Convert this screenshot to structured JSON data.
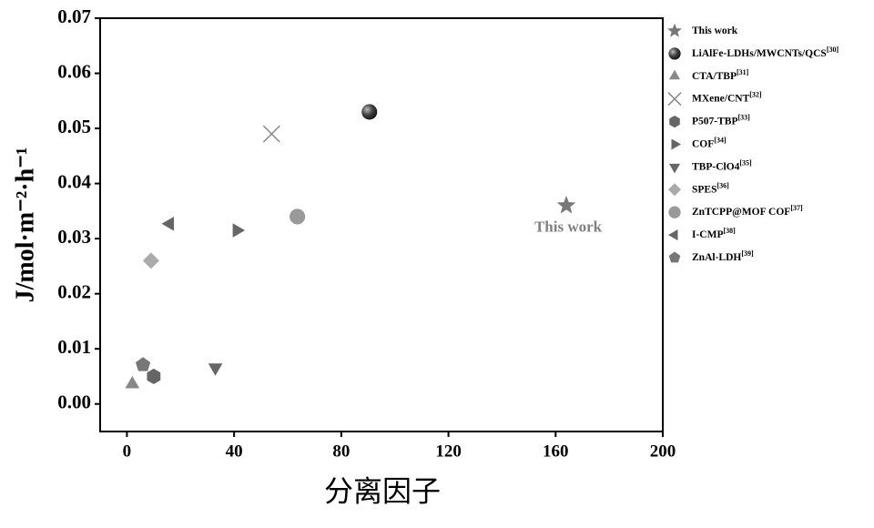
{
  "chart_data": {
    "type": "scatter",
    "x_label": "分离因子",
    "y_label": "J/mol·m⁻²·h⁻¹",
    "annotation": "This work",
    "xlim": [
      -10,
      200
    ],
    "xticks": [
      0,
      40,
      80,
      120,
      160,
      200
    ],
    "ylim": [
      -0.005,
      0.07
    ],
    "yticks": [
      {
        "value": 0,
        "label": "0.00"
      },
      0.01,
      0.02,
      0.03,
      0.04,
      0.05,
      0.06,
      0.07
    ],
    "series": [
      {
        "name": "This work",
        "marker": "star",
        "color": "#777777",
        "x": [
          164
        ],
        "values": [
          0.036
        ]
      },
      {
        "name": "LiAlFe-LDHs/MWCNTs/QCS",
        "ref": "[30]",
        "marker": "sphere",
        "color": "#333333",
        "x": [
          90.5
        ],
        "values": [
          0.053
        ]
      },
      {
        "name": "CTA/TBP",
        "ref": "[31]",
        "marker": "triangle-up",
        "color": "#888888",
        "x": [
          2
        ],
        "values": [
          0.0036
        ]
      },
      {
        "name": "MXene/CNT",
        "ref": "[32]",
        "marker": "cross",
        "color": "#888888",
        "x": [
          54
        ],
        "values": [
          0.049
        ]
      },
      {
        "name": "P507-TBP",
        "ref": "[33]",
        "marker": "hexagon",
        "color": "#666666",
        "x": [
          10
        ],
        "values": [
          0.005
        ]
      },
      {
        "name": "COF",
        "ref": "[34]",
        "marker": "triangle-right",
        "color": "#666666",
        "x": [
          41
        ],
        "values": [
          0.0315
        ]
      },
      {
        "name": "TBP-ClO4",
        "ref": "[35]",
        "marker": "triangle-down",
        "color": "#666666",
        "x": [
          33
        ],
        "values": [
          0.0066
        ]
      },
      {
        "name": "SPES",
        "ref": "[36]",
        "marker": "diamond",
        "color": "#aaaaaa",
        "x": [
          9
        ],
        "values": [
          0.026
        ]
      },
      {
        "name": "ZnTCPP@MOF COF",
        "ref": "[37]",
        "marker": "circle",
        "color": "#999999",
        "x": [
          63.6
        ],
        "values": [
          0.034
        ]
      },
      {
        "name": "I-CMP",
        "ref": "[38]",
        "marker": "triangle-left",
        "color": "#666666",
        "x": [
          16
        ],
        "values": [
          0.0327
        ]
      },
      {
        "name": "ZnAl-LDH",
        "ref": "[39]",
        "marker": "pentagon",
        "color": "#777777",
        "x": [
          6
        ],
        "values": [
          0.0071
        ]
      }
    ]
  }
}
